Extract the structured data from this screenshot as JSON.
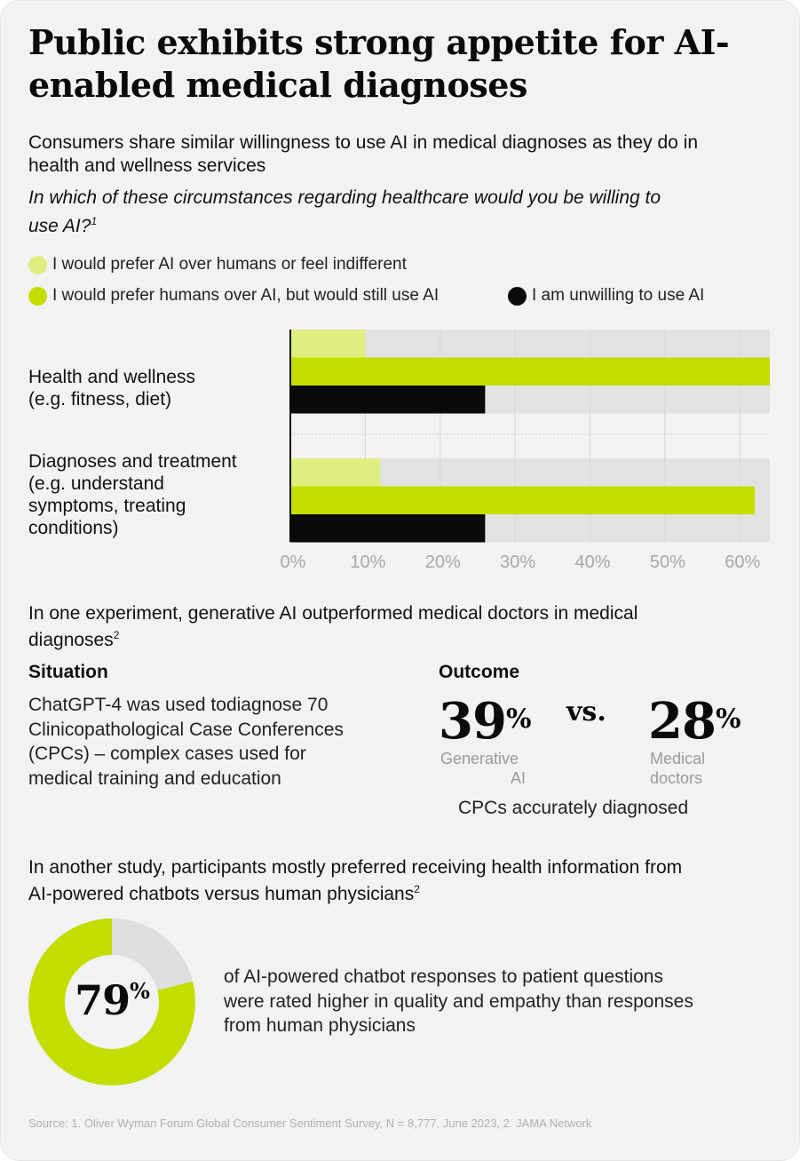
{
  "title": "Public exhibits strong appetite for AI-enabled medical diagnoses",
  "subtitle": "Consumers share similar willingness to use AI in medical diagnoses as they do in health and wellness services",
  "question": "In which of these circumstances regarding healthcare would you be willing to use AI?",
  "question_sup": "1",
  "colors": {
    "light_green": "#dfee7e",
    "green": "#c3dd00",
    "black": "#0a0a0a",
    "track": "#e2e2e2",
    "background": "#f2f2f2"
  },
  "chart_data": {
    "type": "bar",
    "orientation": "horizontal",
    "categories": [
      "Health and wellness\n(e.g. fitness, diet)",
      "Diagnoses and treatment\n(e.g. understand\nsymptoms, treating\nconditions)"
    ],
    "series": [
      {
        "name": "I would prefer AI over humans or feel indifferent",
        "color": "#dfee7e",
        "values": [
          10,
          12
        ]
      },
      {
        "name": "I would prefer humans over AI, but would still use AI",
        "color": "#c3dd00",
        "values": [
          64,
          62
        ]
      },
      {
        "name": "I am unwilling to use AI",
        "color": "#0a0a0a",
        "values": [
          26,
          26
        ]
      }
    ],
    "xlim": [
      0,
      64
    ],
    "xticks": [
      "0%",
      "10%",
      "20%",
      "30%",
      "40%",
      "50%",
      "60%"
    ],
    "xtick_values": [
      0,
      10,
      20,
      30,
      40,
      50,
      60
    ],
    "legend_position": "top",
    "grid": true
  },
  "experiment": {
    "title": "In one experiment, generative AI outperformed medical doctors in medical diagnoses",
    "title_sup": "2",
    "situation_label": "Situation",
    "situation_text": "ChatGPT-4 was used todiagnose 70 Clinicopathological Case Conferences (CPCs) – complex cases used for medical training and education",
    "outcome_label": "Outcome",
    "ai_value": "39",
    "doctor_value": "28",
    "pct_symbol": "%",
    "vs": "vs.",
    "ai_label_1": "Generative",
    "ai_label_2": "AI",
    "doctor_label_1": "Medical",
    "doctor_label_2": "doctors",
    "caption": "CPCs accurately diagnosed"
  },
  "study": {
    "title": "In another study, participants mostly preferred receiving health information from AI-powered chatbots versus human physicians",
    "title_sup": "2",
    "value": 79,
    "value_text": "79",
    "pct_symbol": "%",
    "description": "of AI-powered chatbot responses to patient questions were rated higher in quality and empathy than responses from human physicians"
  },
  "source": "Source: 1. Oliver Wyman Forum Global Consumer Sentiment Survey, N = 8,777, June 2023, 2. JAMA Network"
}
